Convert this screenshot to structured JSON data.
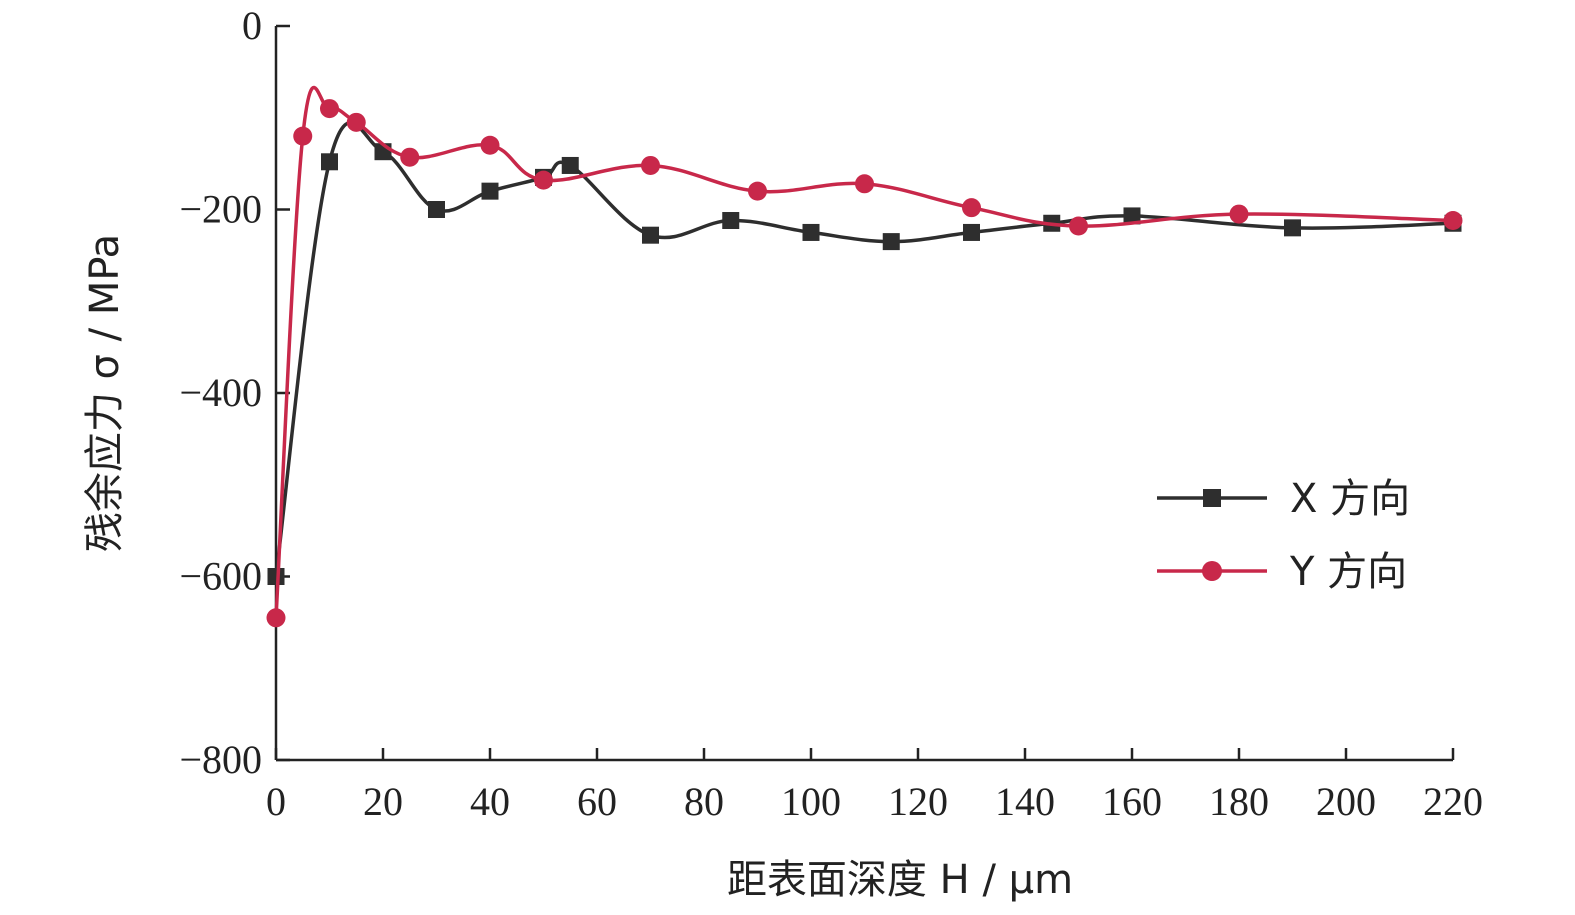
{
  "chart_data": {
    "type": "line",
    "xlabel": "距表面深度 H / μm",
    "ylabel": "残余应力 σ / MPa",
    "xlim": [
      0,
      220
    ],
    "ylim": [
      -800,
      0
    ],
    "xticks": [
      "0",
      "20",
      "40",
      "60",
      "80",
      "100",
      "120",
      "140",
      "160",
      "180",
      "200",
      "220"
    ],
    "yticks": [
      "0",
      "−200",
      "−400",
      "−600",
      "−800"
    ],
    "grid": false,
    "legend_position": "right-middle",
    "series": [
      {
        "name": "X 方向",
        "color": "#2e2e2e",
        "marker": "square",
        "x": [
          0,
          10,
          20,
          30,
          40,
          50,
          55,
          70,
          85,
          100,
          115,
          130,
          145,
          160,
          190,
          220
        ],
        "y": [
          -600,
          -148,
          -137,
          -200,
          -180,
          -165,
          -152,
          -228,
          -212,
          -225,
          -235,
          -225,
          -215,
          -207,
          -220,
          -215
        ]
      },
      {
        "name": "Y 方向",
        "color": "#c8284a",
        "marker": "circle",
        "x": [
          0,
          5,
          10,
          15,
          25,
          40,
          50,
          70,
          90,
          110,
          130,
          150,
          180,
          220
        ],
        "y": [
          -645,
          -120,
          -90,
          -105,
          -143,
          -130,
          -168,
          -152,
          -180,
          -172,
          -198,
          -218,
          -205,
          -212
        ]
      }
    ]
  }
}
